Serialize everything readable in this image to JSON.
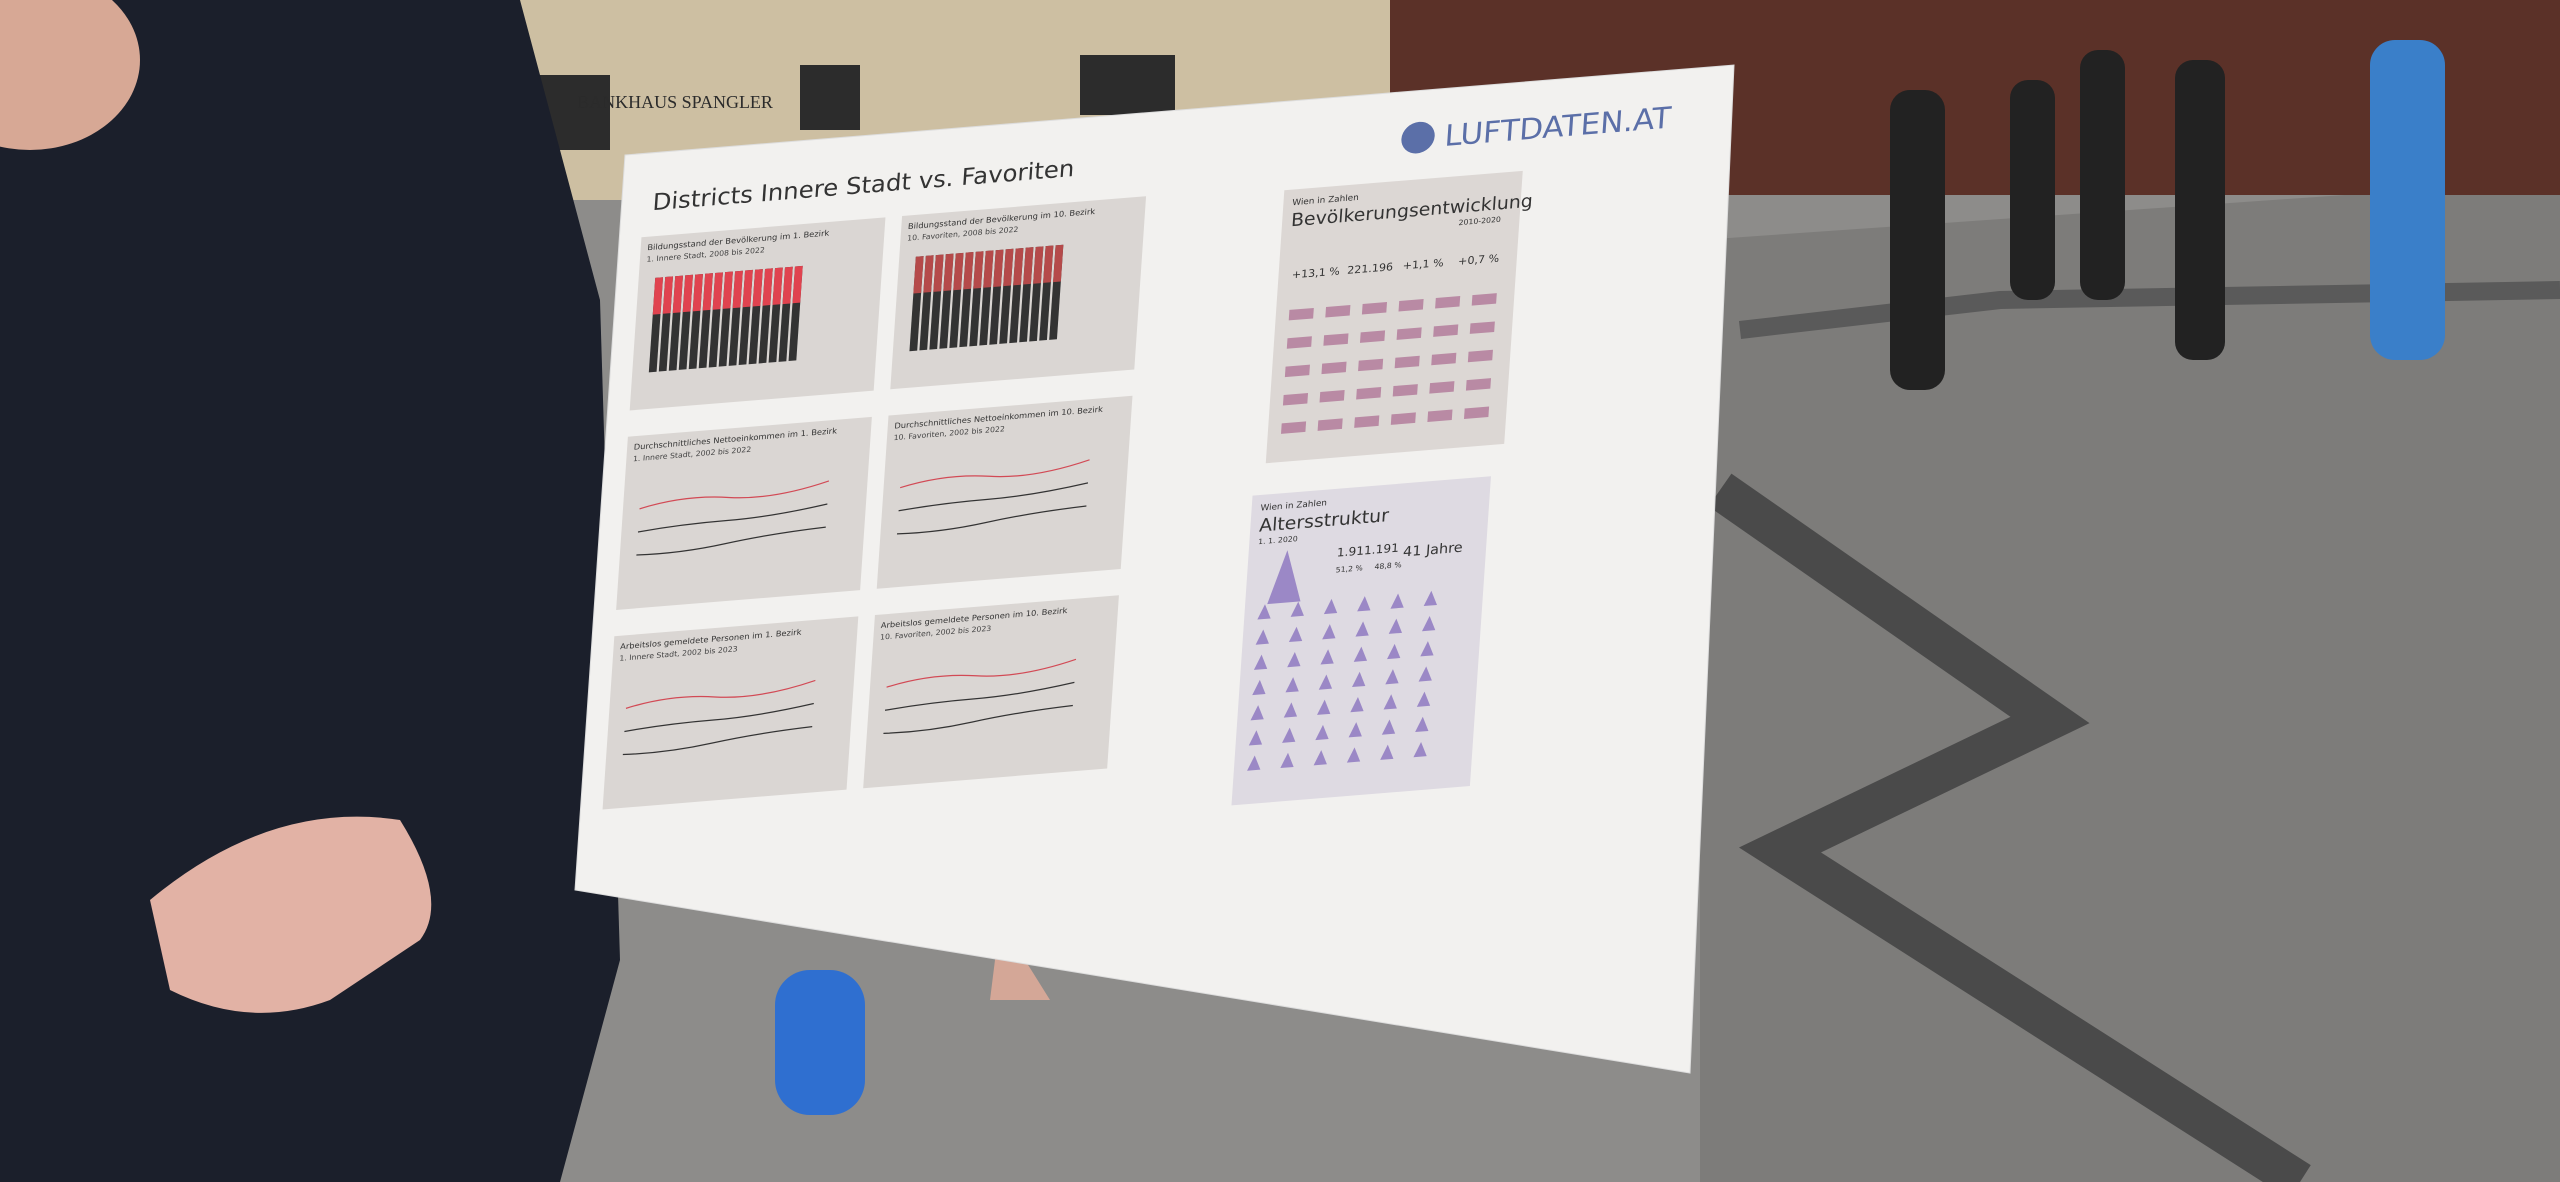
{
  "scene": {
    "storefront": "BANKHAUS SPANGLER",
    "poster": {
      "title": "Districts Innere Stadt vs. Favoriten",
      "logo": "LUFTDATEN.AT",
      "panels": [
        {
          "title": "Bildungsstand der Bevölkerung im 1. Bezirk",
          "subtitle": "1. Innere Stadt, 2008 bis 2022"
        },
        {
          "title": "Bildungsstand der Bevölkerung im 10. Bezirk",
          "subtitle": "10. Favoriten, 2008 bis 2022"
        },
        {
          "title": "Durchschnittliches Nettoeinkommen im 1. Bezirk",
          "subtitle": "1. Innere Stadt, 2002 bis 2022"
        },
        {
          "title": "Durchschnittliches Nettoeinkommen im 10. Bezirk",
          "subtitle": "10. Favoriten, 2002 bis 2022"
        },
        {
          "title": "Arbeitslos gemeldete Personen im 1. Bezirk",
          "subtitle": "1. Innere Stadt, 2002 bis 2023"
        },
        {
          "title": "Arbeitslos gemeldete Personen im 10. Bezirk",
          "subtitle": "10. Favoriten, 2002 bis 2023"
        }
      ],
      "population": {
        "kicker": "Wien in Zahlen",
        "title": "Bevölkerungsentwicklung",
        "period": "2010-2020",
        "stats": [
          "+13,1 %",
          "221.196",
          "+1,1 %",
          "+0,7 %"
        ]
      },
      "age": {
        "kicker": "Wien in Zahlen",
        "title": "Altersstruktur",
        "date": "1. 1. 2020",
        "stats": [
          "1.911.191",
          "51,2 %",
          "48,8 %",
          "41 Jahre"
        ]
      }
    }
  }
}
